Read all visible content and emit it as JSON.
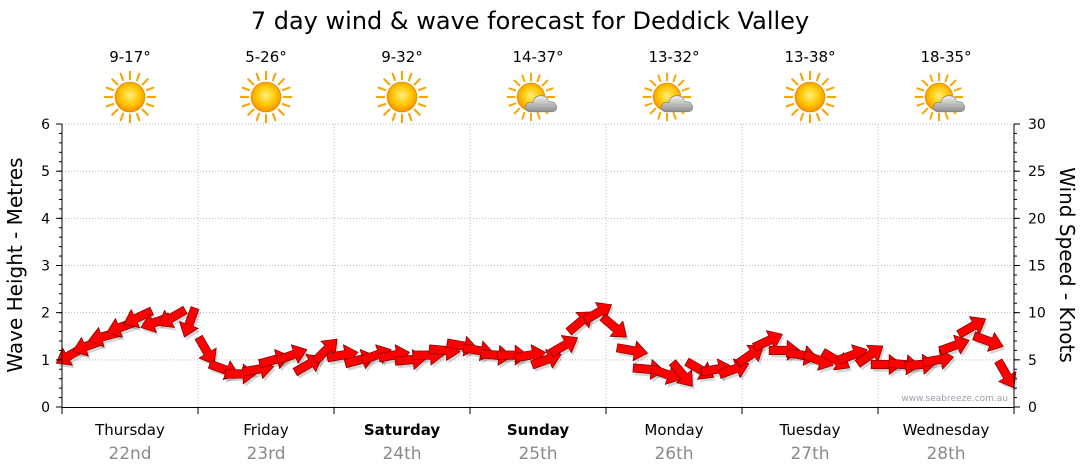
{
  "chart_data": {
    "type": "line",
    "title": "7 day wind & wave forecast for Deddick Valley",
    "ylabel_left": "Wave Height - Metres",
    "ylabel_right": "Wind Speed - Knots",
    "ylim_left": [
      0,
      6
    ],
    "ylim_right": [
      0,
      30
    ],
    "yticks_left": [
      "0",
      "1",
      "2",
      "3",
      "4",
      "5",
      "6"
    ],
    "yticks_right": [
      "0",
      "5",
      "10",
      "15",
      "20",
      "25",
      "30"
    ],
    "grid": true,
    "watermark": "www.seabreeze.com.au",
    "days": [
      {
        "name": "Thursday",
        "date": "22nd",
        "temp": "9-17°",
        "icon": "sun-icon",
        "bold": false
      },
      {
        "name": "Friday",
        "date": "23rd",
        "temp": "5-26°",
        "icon": "sun-icon",
        "bold": false
      },
      {
        "name": "Saturday",
        "date": "24th",
        "temp": "9-32°",
        "icon": "sun-icon",
        "bold": true
      },
      {
        "name": "Sunday",
        "date": "25th",
        "temp": "14-37°",
        "icon": "partly-cloudy-icon",
        "bold": true
      },
      {
        "name": "Monday",
        "date": "26th",
        "temp": "13-32°",
        "icon": "partly-cloudy-icon",
        "bold": false
      },
      {
        "name": "Tuesday",
        "date": "27th",
        "temp": "13-38°",
        "icon": "sun-icon",
        "bold": false
      },
      {
        "name": "Wednesday",
        "date": "28th",
        "temp": "18-35°",
        "icon": "partly-cloudy-icon",
        "bold": false
      }
    ],
    "series": [
      {
        "color": "#ff0000",
        "x": [
          0.0,
          0.13,
          0.25,
          0.38,
          0.5,
          0.63,
          0.75,
          0.88,
          1.0,
          1.13,
          1.25,
          1.38,
          1.5,
          1.63,
          1.75,
          1.88,
          2.0,
          2.13,
          2.25,
          2.38,
          2.5,
          2.63,
          2.75,
          2.88,
          3.0,
          3.13,
          3.25,
          3.38,
          3.5,
          3.63,
          3.75,
          3.88,
          4.0,
          4.13,
          4.25,
          4.38,
          4.5,
          4.63,
          4.75,
          4.88,
          5.0,
          5.13,
          5.25,
          5.38,
          5.5,
          5.63,
          5.75,
          5.88,
          6.0,
          6.13,
          6.25,
          6.38,
          6.5,
          6.63,
          6.75,
          6.88
        ],
        "wind_knots": [
          5.5,
          6.5,
          7.5,
          8.5,
          9.5,
          9.0,
          9.5,
          9.0,
          6.0,
          4.0,
          3.5,
          4.0,
          5.0,
          5.5,
          4.5,
          6.0,
          5.5,
          5.0,
          5.5,
          5.5,
          5.0,
          5.5,
          6.0,
          6.5,
          6.0,
          5.5,
          5.5,
          5.5,
          5.0,
          6.5,
          9.0,
          10.0,
          8.5,
          6.0,
          4.0,
          3.5,
          3.5,
          4.0,
          4.0,
          4.0,
          5.5,
          7.0,
          6.0,
          5.5,
          5.0,
          5.0,
          5.5,
          5.5,
          4.5,
          4.5,
          4.5,
          5.0,
          6.5,
          8.5,
          7.0,
          3.5
        ],
        "direction_deg": [
          240,
          250,
          255,
          250,
          245,
          250,
          240,
          200,
          150,
          110,
          90,
          80,
          75,
          70,
          60,
          45,
          80,
          75,
          70,
          80,
          85,
          90,
          95,
          100,
          100,
          95,
          90,
          80,
          70,
          60,
          50,
          60,
          130,
          100,
          95,
          110,
          140,
          120,
          80,
          70,
          55,
          65,
          90,
          100,
          110,
          120,
          70,
          55,
          90,
          95,
          85,
          80,
          70,
          60,
          110,
          150
        ]
      }
    ]
  }
}
